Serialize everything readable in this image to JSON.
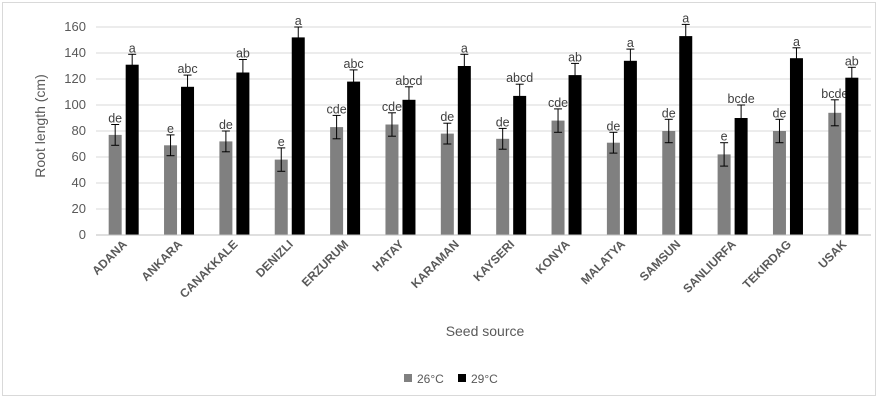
{
  "chart_data": {
    "type": "bar",
    "xlabel": "Seed source",
    "ylabel": "Root length (cm)",
    "ylim": [
      0,
      160
    ],
    "yticks": [
      0,
      20,
      40,
      60,
      80,
      100,
      120,
      140,
      160
    ],
    "grid": true,
    "legend_position": "bottom",
    "categories": [
      "ADANA",
      "ANKARA",
      "CANAKKALE",
      "DENIZLI",
      "ERZURUM",
      "HATAY",
      "KARAMAN",
      "KAYSERI",
      "KONYA",
      "MALATYA",
      "SAMSUN",
      "SANLIURFA",
      "TEKIRDAG",
      "USAK"
    ],
    "series": [
      {
        "name": "26°C",
        "color": "#808080",
        "values": [
          77,
          69,
          72,
          58,
          83,
          85,
          78,
          74,
          88,
          71,
          80,
          62,
          80,
          94
        ],
        "errors": [
          8,
          8,
          8,
          9,
          9,
          9,
          8,
          8,
          9,
          8,
          9,
          9,
          9,
          10
        ],
        "letters": [
          "de",
          "e",
          "de",
          "e",
          "cde",
          "cde",
          "de",
          "de",
          "cde",
          "de",
          "de",
          "e",
          "de",
          "bcde"
        ]
      },
      {
        "name": "29°C",
        "color": "#000000",
        "values": [
          131,
          114,
          125,
          152,
          118,
          104,
          130,
          107,
          123,
          134,
          153,
          90,
          136,
          121
        ],
        "errors": [
          8,
          9,
          10,
          8,
          9,
          10,
          9,
          9,
          9,
          9,
          9,
          10,
          8,
          8
        ],
        "letters": [
          "a",
          "abc",
          "ab",
          "a",
          "abc",
          "abcd",
          "a",
          "abcd",
          "ab",
          "a",
          "a",
          "bcde",
          "a",
          "ab"
        ]
      }
    ]
  }
}
